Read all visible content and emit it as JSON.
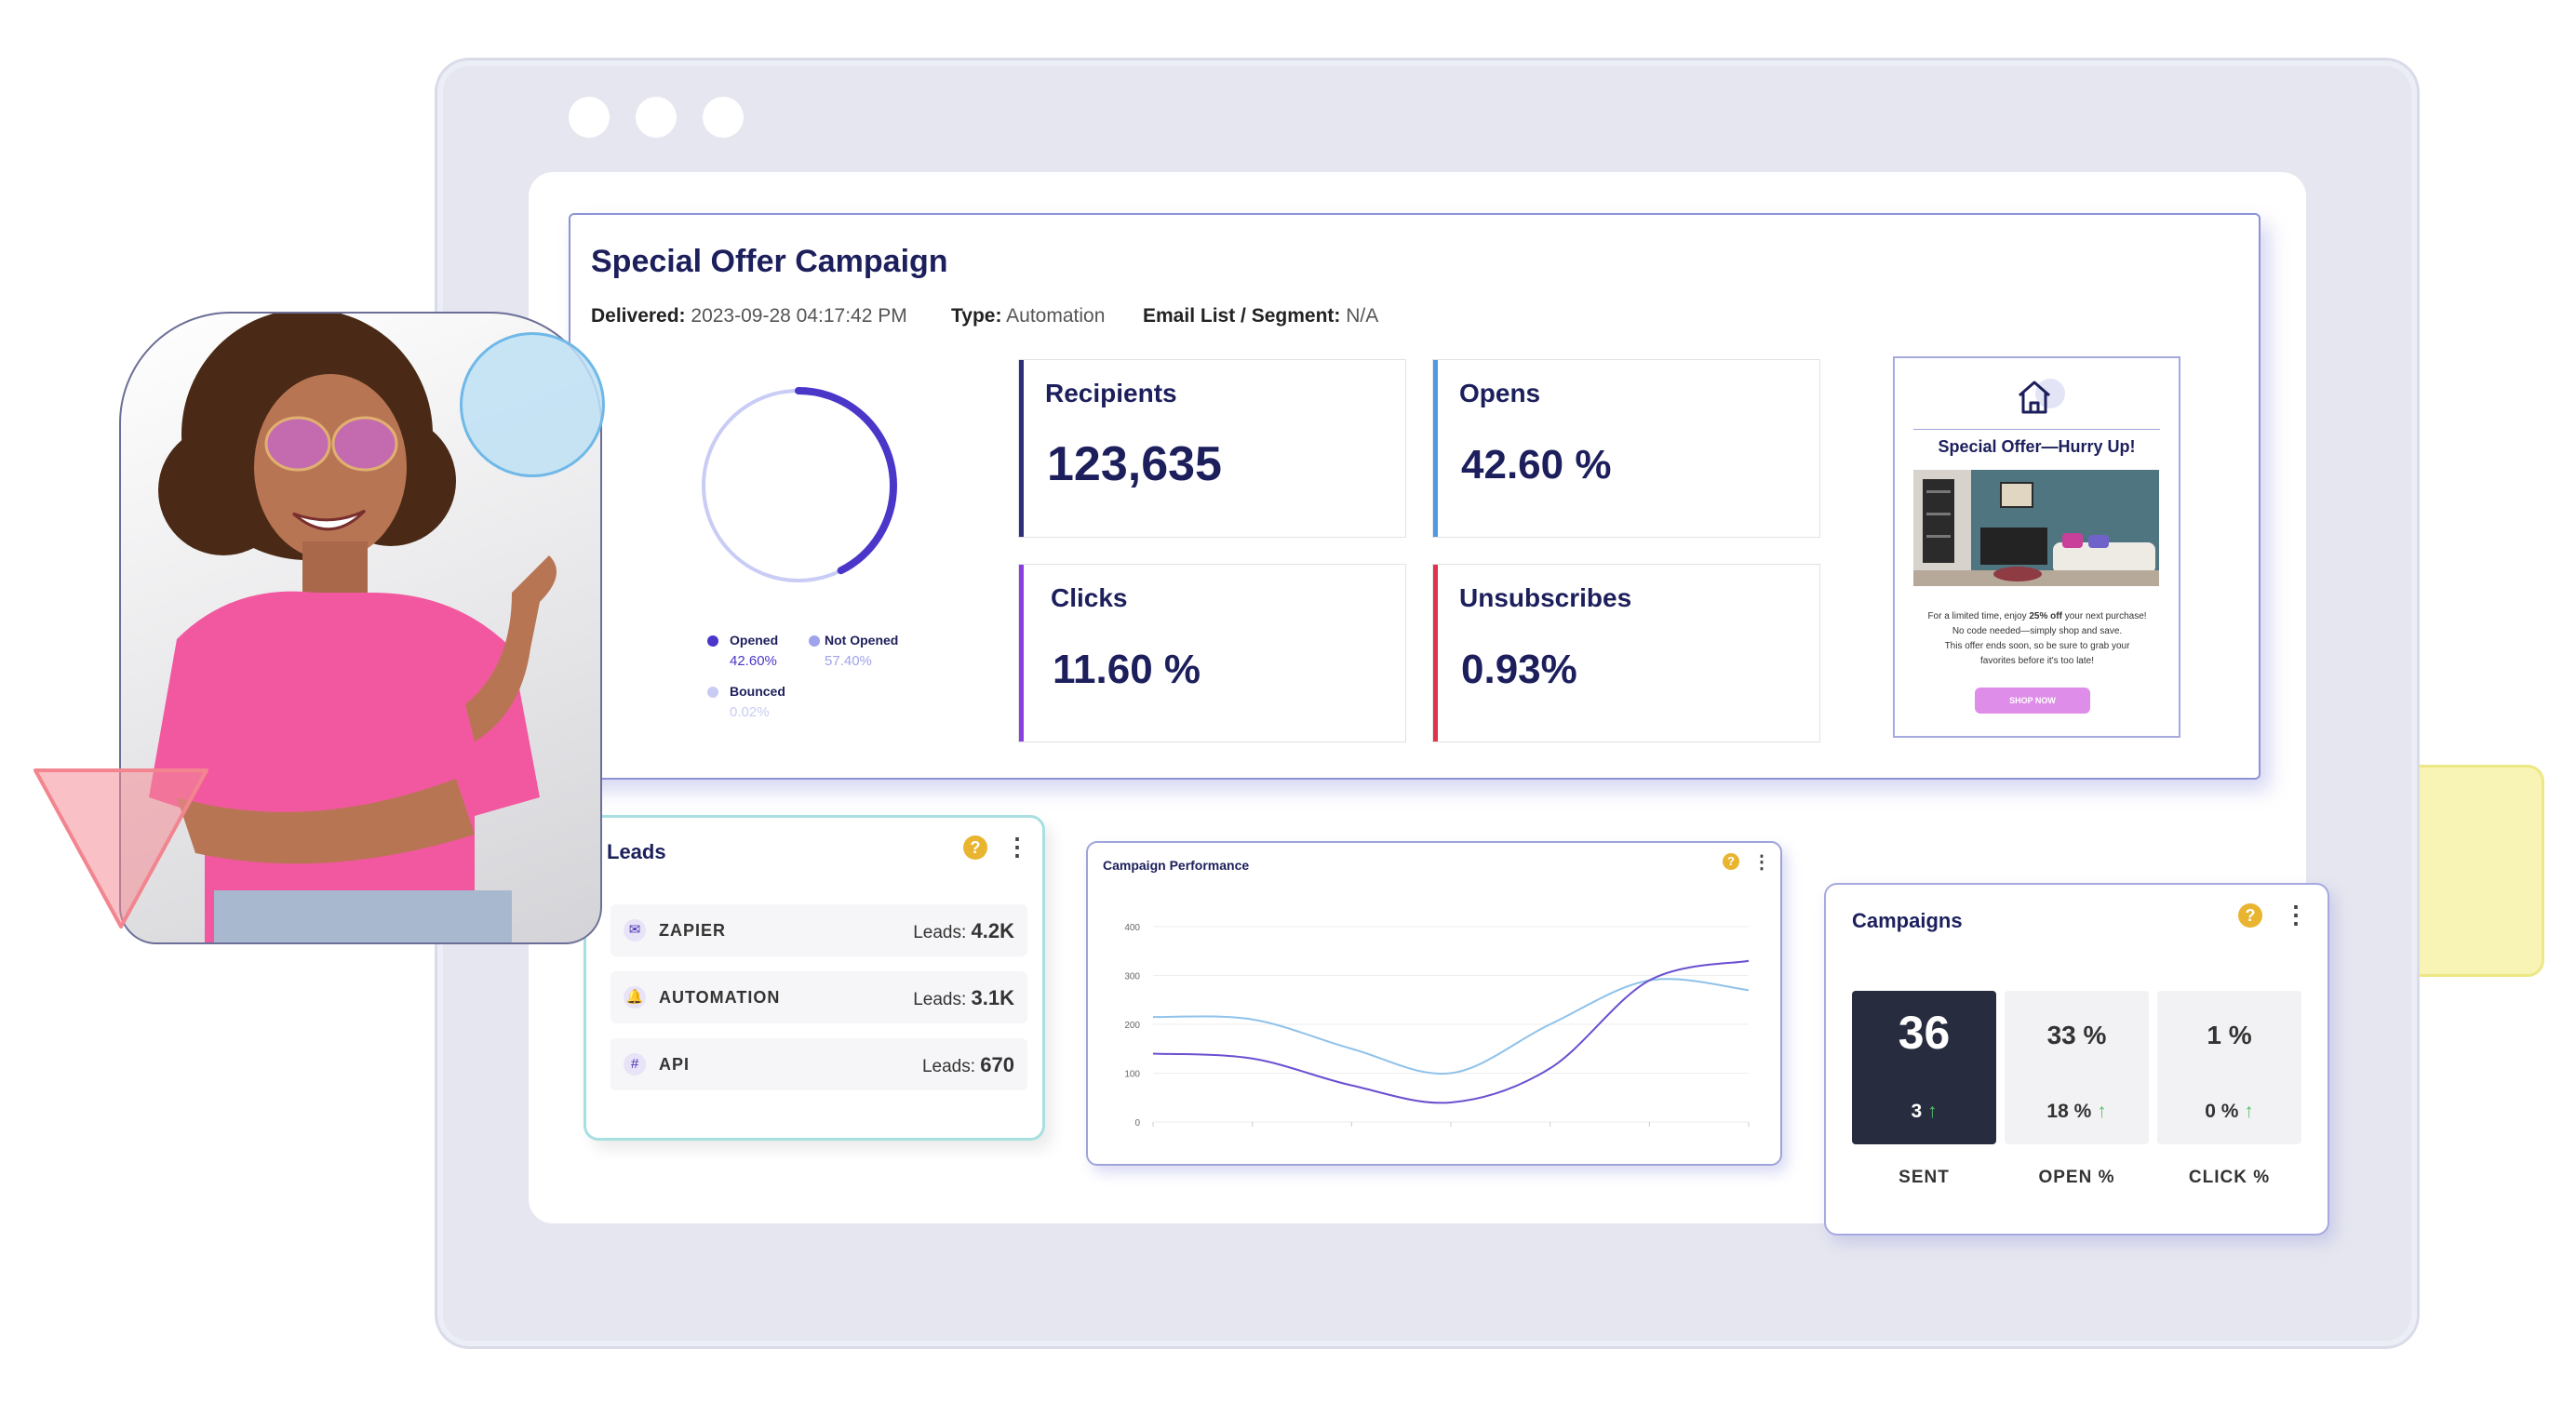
{
  "campaign": {
    "title": "Special Offer Campaign",
    "delivered_label": "Delivered:",
    "delivered_value": "2023-09-28 04:17:42 PM",
    "type_label": "Type:",
    "type_value": "Automation",
    "segment_label": "Email List / Segment:",
    "segment_value": "N/A",
    "donut": {
      "opened_fraction": 0.426,
      "legend": [
        {
          "label": "Opened",
          "value": "42.60%",
          "color": "#4a36c9"
        },
        {
          "label": "Not Opened",
          "value": "57.40%",
          "color": "#9fa3ea"
        },
        {
          "label": "Bounced",
          "value": "0.02%",
          "color": "#c8cbf4"
        }
      ]
    },
    "stats": [
      {
        "label": "Recipients",
        "value": "123,635",
        "color": "#2d2f78"
      },
      {
        "label": "Opens",
        "value": "42.60 %",
        "color": "#4c9be0"
      },
      {
        "label": "Clicks",
        "value": "11.60 %",
        "color": "#8a3fe0"
      },
      {
        "label": "Unsubscribes",
        "value": "0.93%",
        "color": "#e0334b"
      }
    ],
    "email_preview": {
      "title": "Special Offer—Hurry Up!",
      "body_1": "For a limited time, enjoy ",
      "body_bold": "25% off",
      "body_2": " your next purchase!",
      "body_3": "No code needed—simply shop and save.",
      "body_4": "This offer ends soon, so be sure to grab your",
      "body_5": "favorites before it's too late!",
      "button": "SHOP NOW"
    }
  },
  "leads": {
    "title": "Leads",
    "rows": [
      {
        "name": "ZAPIER",
        "label": "Leads:",
        "value": "4.2K",
        "icon": "email-icon"
      },
      {
        "name": "AUTOMATION",
        "label": "Leads:",
        "value": "3.1K",
        "icon": "bell-icon"
      },
      {
        "name": "API",
        "label": "Leads:",
        "value": "670",
        "icon": "hashtag-icon"
      }
    ]
  },
  "performance": {
    "title": "Campaign Performance",
    "chart_data": {
      "type": "line",
      "title": "Campaign Performance",
      "xlabel": "",
      "ylabel": "",
      "ylim": [
        0,
        400
      ],
      "yticks": [
        "400",
        "300",
        "200",
        "100",
        "0"
      ],
      "x": [
        0,
        1,
        2,
        3,
        4,
        5,
        6
      ],
      "series": [
        {
          "values": [
            215,
            210,
            150,
            100,
            200,
            290,
            270
          ],
          "color": "#8fc2ea"
        },
        {
          "values": [
            140,
            130,
            75,
            40,
            110,
            290,
            330
          ],
          "color": "#6b4fd0"
        }
      ]
    }
  },
  "campaigns": {
    "title": "Campaigns",
    "metrics": [
      {
        "big": "36",
        "small": "3",
        "caption": "SENT"
      },
      {
        "big": "33 %",
        "small": "18 %",
        "caption": "OPEN %"
      },
      {
        "big": "1 %",
        "small": "0 %",
        "caption": "CLICK %"
      }
    ]
  },
  "colors": {
    "brand_navy": "#1c1f5c",
    "accent_purple": "#4a36c9",
    "help_yellow": "#e9b531",
    "pink_shirt": "#f2589f"
  }
}
